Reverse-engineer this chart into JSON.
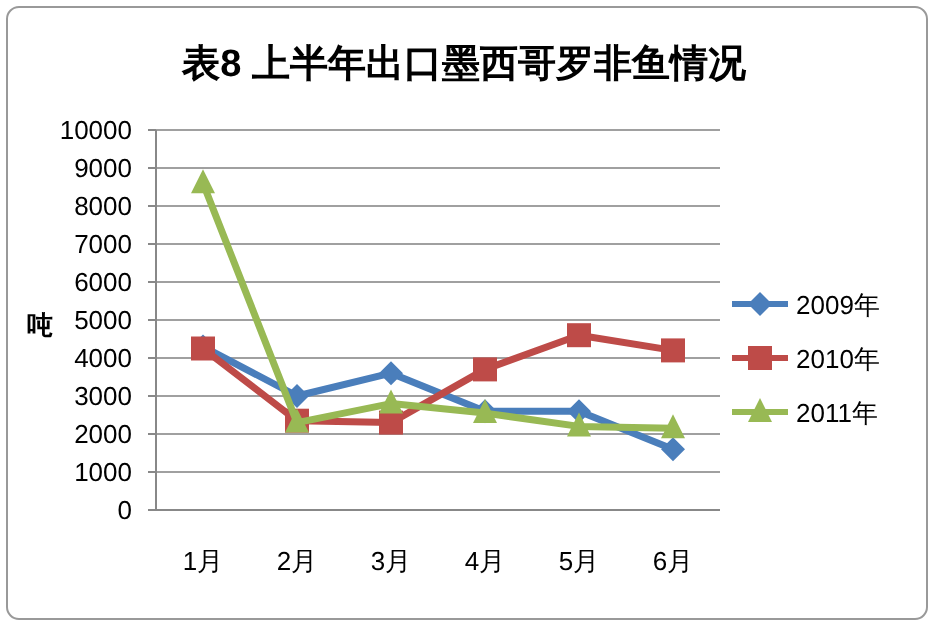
{
  "chart_data": {
    "type": "line",
    "title": "表8 上半年出口墨西哥罗非鱼情况",
    "ylabel": "吨",
    "categories": [
      "1月",
      "2月",
      "3月",
      "4月",
      "5月",
      "6月"
    ],
    "series": [
      {
        "name": "2009年",
        "color": "#4a7ebb",
        "marker": "diamond",
        "values": [
          4300,
          3000,
          3600,
          2600,
          2600,
          1600
        ]
      },
      {
        "name": "2010年",
        "color": "#be4b48",
        "marker": "square",
        "values": [
          4250,
          2350,
          2300,
          3700,
          4600,
          4200
        ]
      },
      {
        "name": "2011年",
        "color": "#98b954",
        "marker": "triangle",
        "values": [
          8600,
          2300,
          2800,
          2550,
          2200,
          2150
        ]
      }
    ],
    "ylim": [
      0,
      10000
    ],
    "yticks": [
      0,
      1000,
      2000,
      3000,
      4000,
      5000,
      6000,
      7000,
      8000,
      9000,
      10000
    ],
    "grid": "y",
    "legend": "right"
  }
}
